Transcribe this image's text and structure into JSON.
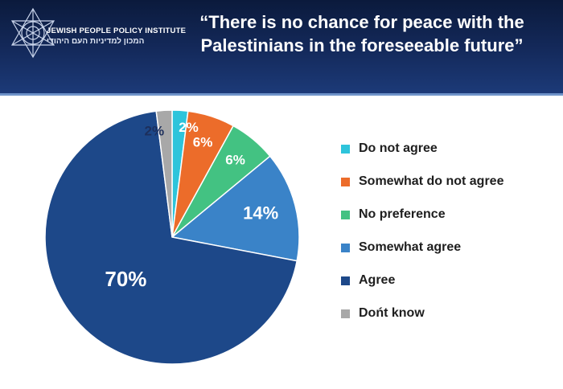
{
  "header": {
    "org_name_en": "JEWISH PEOPLE POLICY INSTITUTE",
    "org_name_he": "המכון למדיניות העם היהודי",
    "title_line1": "“There is no chance for peace with the",
    "title_line2": "Palestinians in the foreseeable future”"
  },
  "colors": {
    "header_bg": "#142a5c",
    "do_not_agree": "#2ec4db",
    "somewhat_do_not_agree": "#ec6c2a",
    "no_preference": "#43c282",
    "somewhat_agree": "#3a83c8",
    "agree": "#1d4889",
    "dont_know": "#a8a8a8"
  },
  "legend": [
    {
      "label": "Do not agree",
      "color": "#2ec4db"
    },
    {
      "label": "Somewhat do not agree",
      "color": "#ec6c2a"
    },
    {
      "label": "No preference",
      "color": "#43c282"
    },
    {
      "label": "Somewhat agree",
      "color": "#3a83c8"
    },
    {
      "label": "Agree",
      "color": "#1d4889"
    },
    {
      "label": "Dońt know",
      "color": "#a8a8a8"
    }
  ],
  "chart_data": {
    "type": "pie",
    "categories": [
      "Do not agree",
      "Somewhat do not agree",
      "No preference",
      "Somewhat agree",
      "Agree",
      "Dońt know"
    ],
    "values": [
      2,
      6,
      6,
      14,
      70,
      2
    ],
    "data_labels": [
      "2%",
      "6%",
      "6%",
      "14%",
      "70%",
      "2%"
    ],
    "colors": [
      "#2ec4db",
      "#ec6c2a",
      "#43c282",
      "#3a83c8",
      "#1d4889",
      "#a8a8a8"
    ],
    "start": "12 o'clock",
    "direction": "clockwise",
    "legend_position": "right"
  }
}
